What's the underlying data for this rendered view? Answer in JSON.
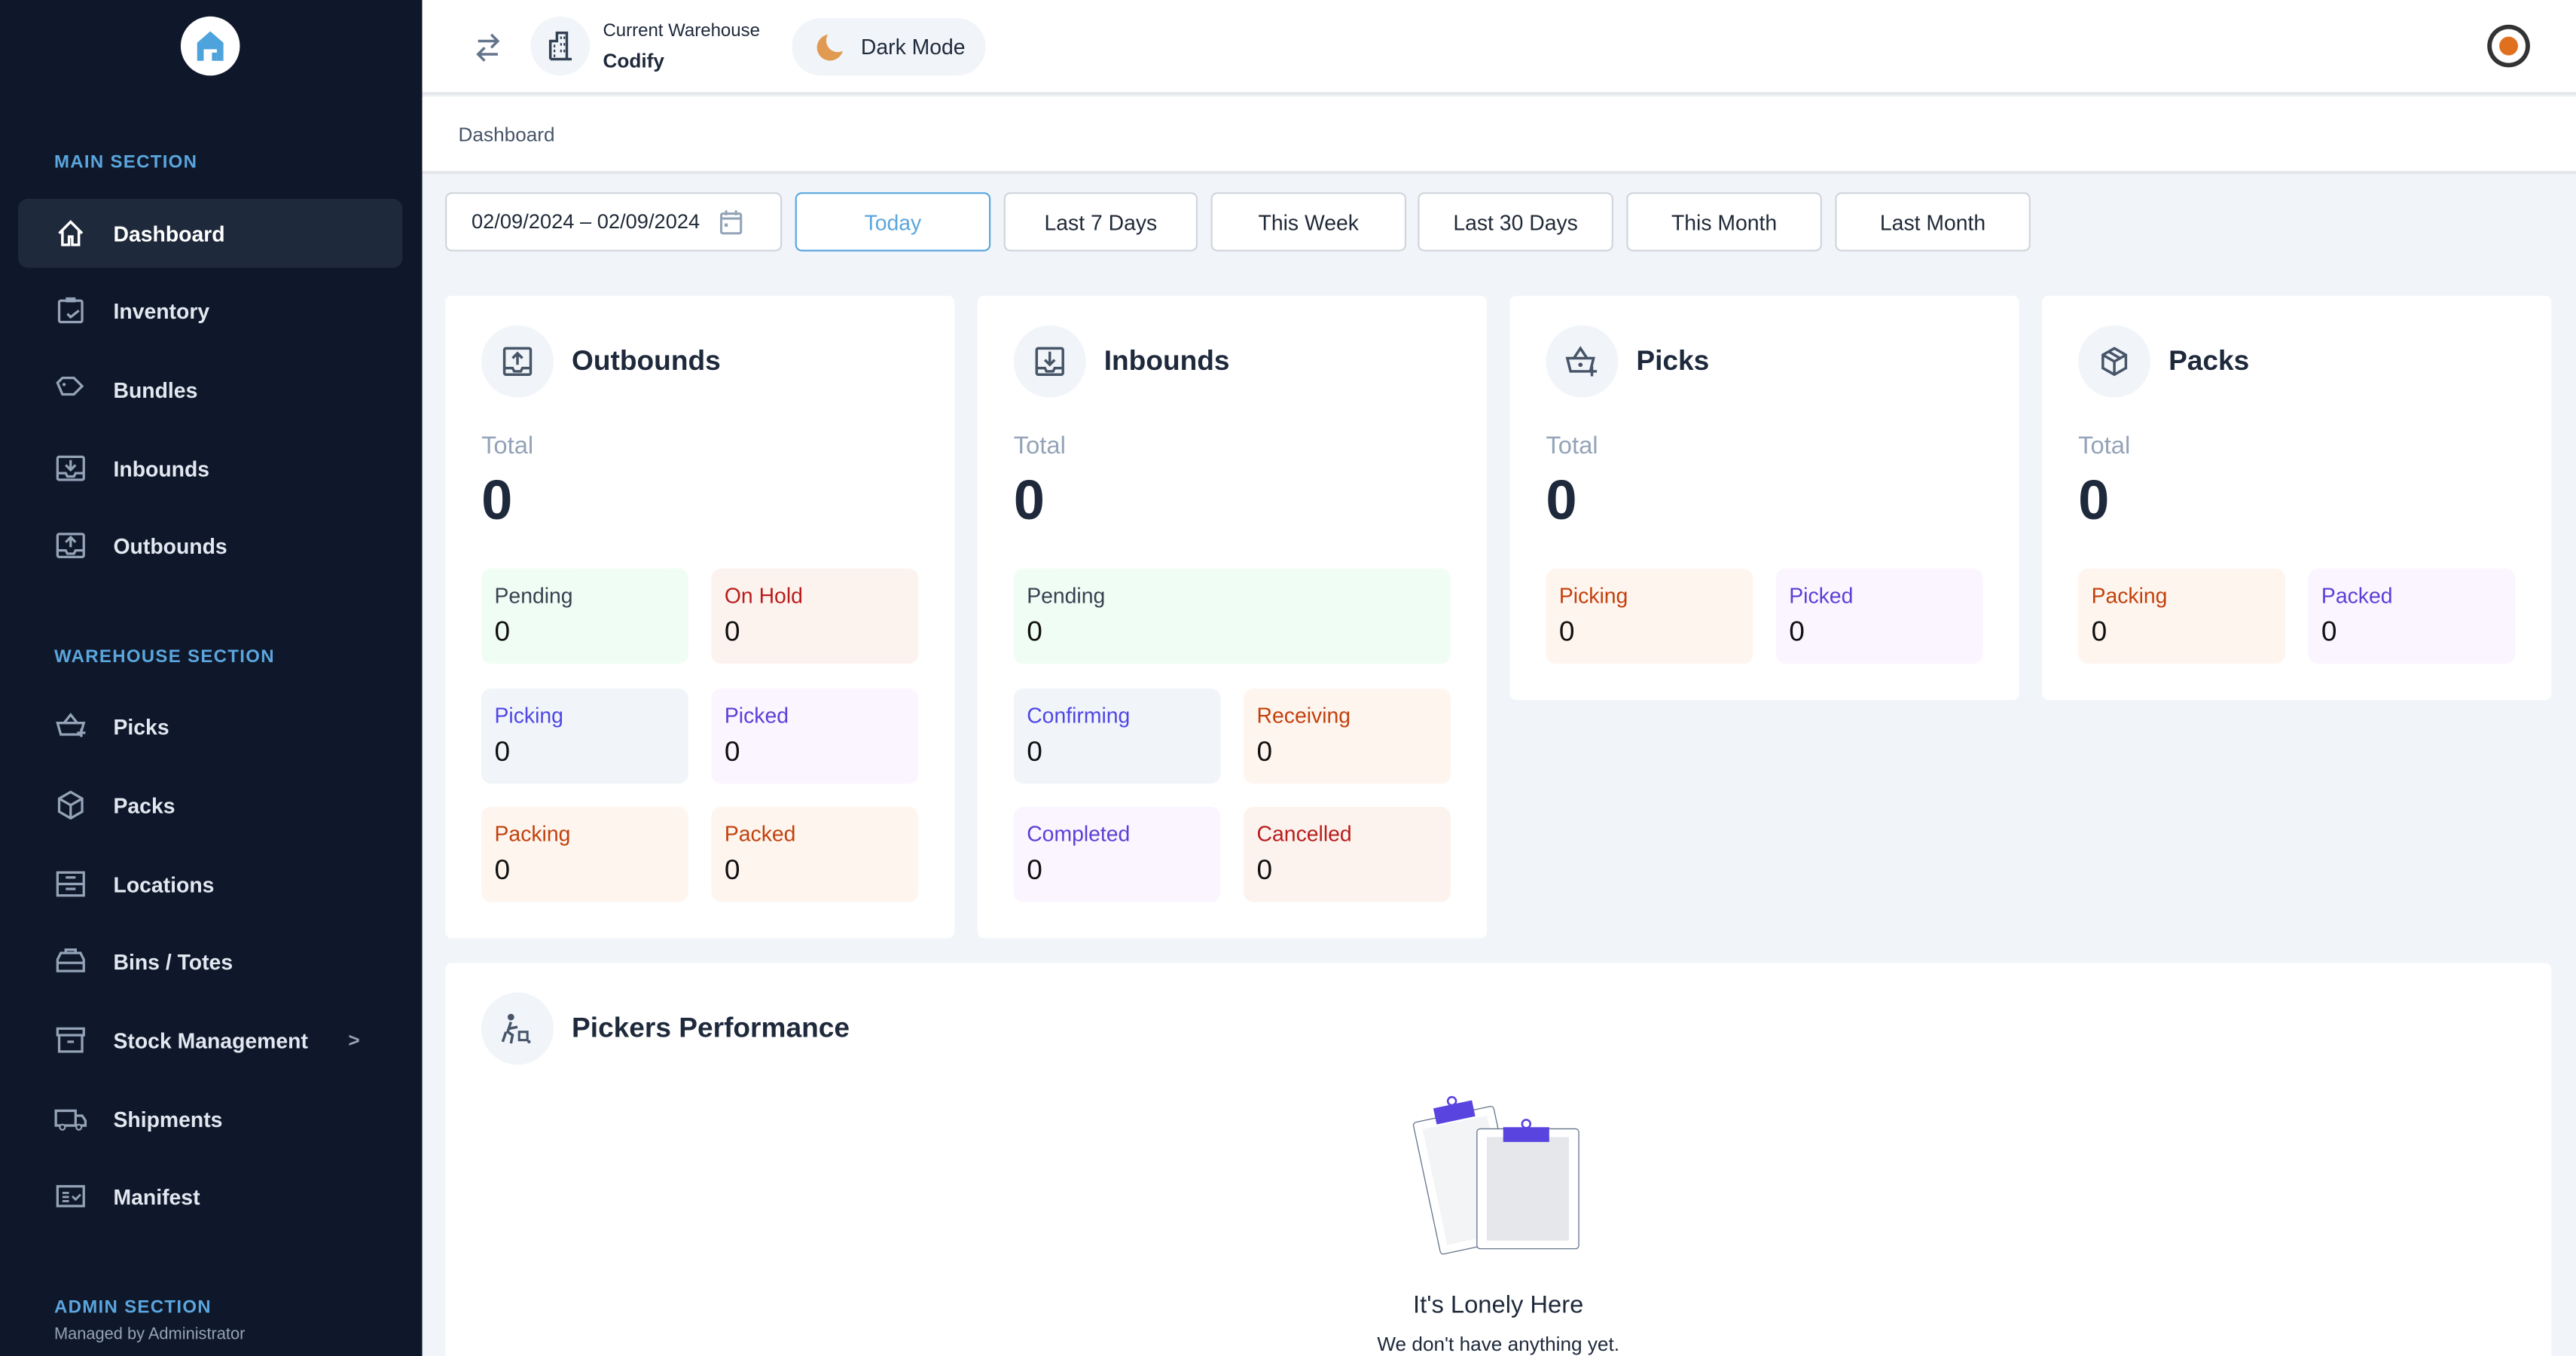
{
  "sidebar": {
    "main_section": "MAIN SECTION",
    "main_items": [
      {
        "label": "Dashboard",
        "icon": "home-icon",
        "active": true
      },
      {
        "label": "Inventory",
        "icon": "clipboard-check-icon"
      },
      {
        "label": "Bundles",
        "icon": "tags-icon"
      },
      {
        "label": "Inbounds",
        "icon": "inbox-in-icon"
      },
      {
        "label": "Outbounds",
        "icon": "inbox-out-icon"
      }
    ],
    "warehouse_section": "WAREHOUSE SECTION",
    "warehouse_items": [
      {
        "label": "Picks",
        "icon": "basket-plus-icon"
      },
      {
        "label": "Packs",
        "icon": "box-icon"
      },
      {
        "label": "Locations",
        "icon": "shelves-icon"
      },
      {
        "label": "Bins / Totes",
        "icon": "toolbox-icon"
      },
      {
        "label": "Stock Management",
        "icon": "archive-icon",
        "chevron": ">"
      },
      {
        "label": "Shipments",
        "icon": "truck-icon"
      },
      {
        "label": "Manifest",
        "icon": "checklist-icon"
      }
    ],
    "admin_section": "ADMIN SECTION",
    "admin_subtitle": "Managed by Administrator"
  },
  "header": {
    "warehouse_label": "Current Warehouse",
    "warehouse_name": "Codify",
    "dark_mode": "Dark Mode"
  },
  "breadcrumb": "Dashboard",
  "filters": {
    "date_range": "02/09/2024 – 02/09/2024",
    "ranges": [
      "Today",
      "Last 7 Days",
      "This Week",
      "Last 30 Days",
      "This Month",
      "Last Month"
    ],
    "selected": "Today"
  },
  "cards": {
    "outbounds": {
      "title": "Outbounds",
      "total_label": "Total",
      "total": "0",
      "tiles": [
        {
          "label": "Pending",
          "value": "0"
        },
        {
          "label": "On Hold",
          "value": "0"
        },
        {
          "label": "Picking",
          "value": "0"
        },
        {
          "label": "Picked",
          "value": "0"
        },
        {
          "label": "Packing",
          "value": "0"
        },
        {
          "label": "Packed",
          "value": "0"
        }
      ]
    },
    "inbounds": {
      "title": "Inbounds",
      "total_label": "Total",
      "total": "0",
      "tiles": [
        {
          "label": "Pending",
          "value": "0"
        },
        {
          "label": "Confirming",
          "value": "0"
        },
        {
          "label": "Receiving",
          "value": "0"
        },
        {
          "label": "Completed",
          "value": "0"
        },
        {
          "label": "Cancelled",
          "value": "0"
        }
      ]
    },
    "picks": {
      "title": "Picks",
      "total_label": "Total",
      "total": "0",
      "tiles": [
        {
          "label": "Picking",
          "value": "0"
        },
        {
          "label": "Picked",
          "value": "0"
        }
      ]
    },
    "packs": {
      "title": "Packs",
      "total_label": "Total",
      "total": "0",
      "tiles": [
        {
          "label": "Packing",
          "value": "0"
        },
        {
          "label": "Packed",
          "value": "0"
        }
      ]
    }
  },
  "pickers": {
    "title": "Pickers Performance",
    "empty_title": "It's Lonely Here",
    "empty_text": "We don't have anything yet."
  },
  "colors": {
    "sidebar_bg": "#0f172a",
    "accent": "#5aa6dd",
    "clip": "#5a44e0"
  }
}
